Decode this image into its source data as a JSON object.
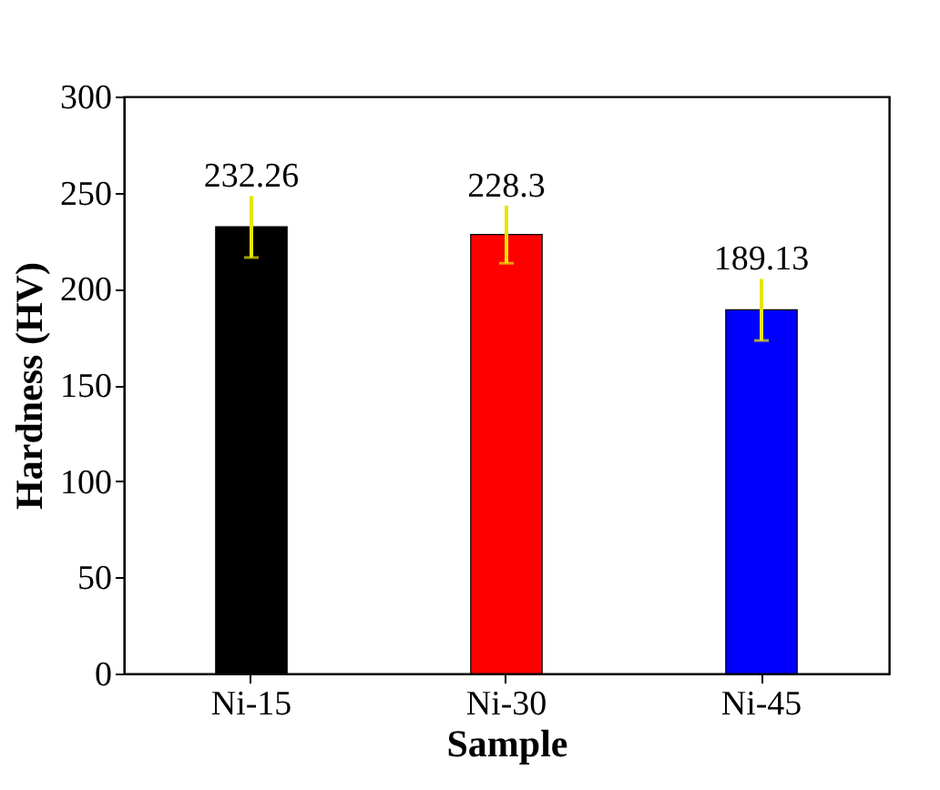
{
  "chart_data": {
    "type": "bar",
    "xlabel": "Sample",
    "ylabel": "Hardness (HV)",
    "categories": [
      "Ni-15",
      "Ni-30",
      "Ni-45"
    ],
    "values": [
      232.26,
      228.3,
      189.13
    ],
    "colors": [
      "#000000",
      "#ff0000",
      "#0000ff"
    ],
    "errors": [
      16,
      15,
      16
    ],
    "data_labels": true,
    "ylim": [
      0,
      300
    ],
    "yticks": [
      0,
      50,
      100,
      150,
      200,
      250,
      300
    ],
    "grid": false,
    "legend": false
  }
}
